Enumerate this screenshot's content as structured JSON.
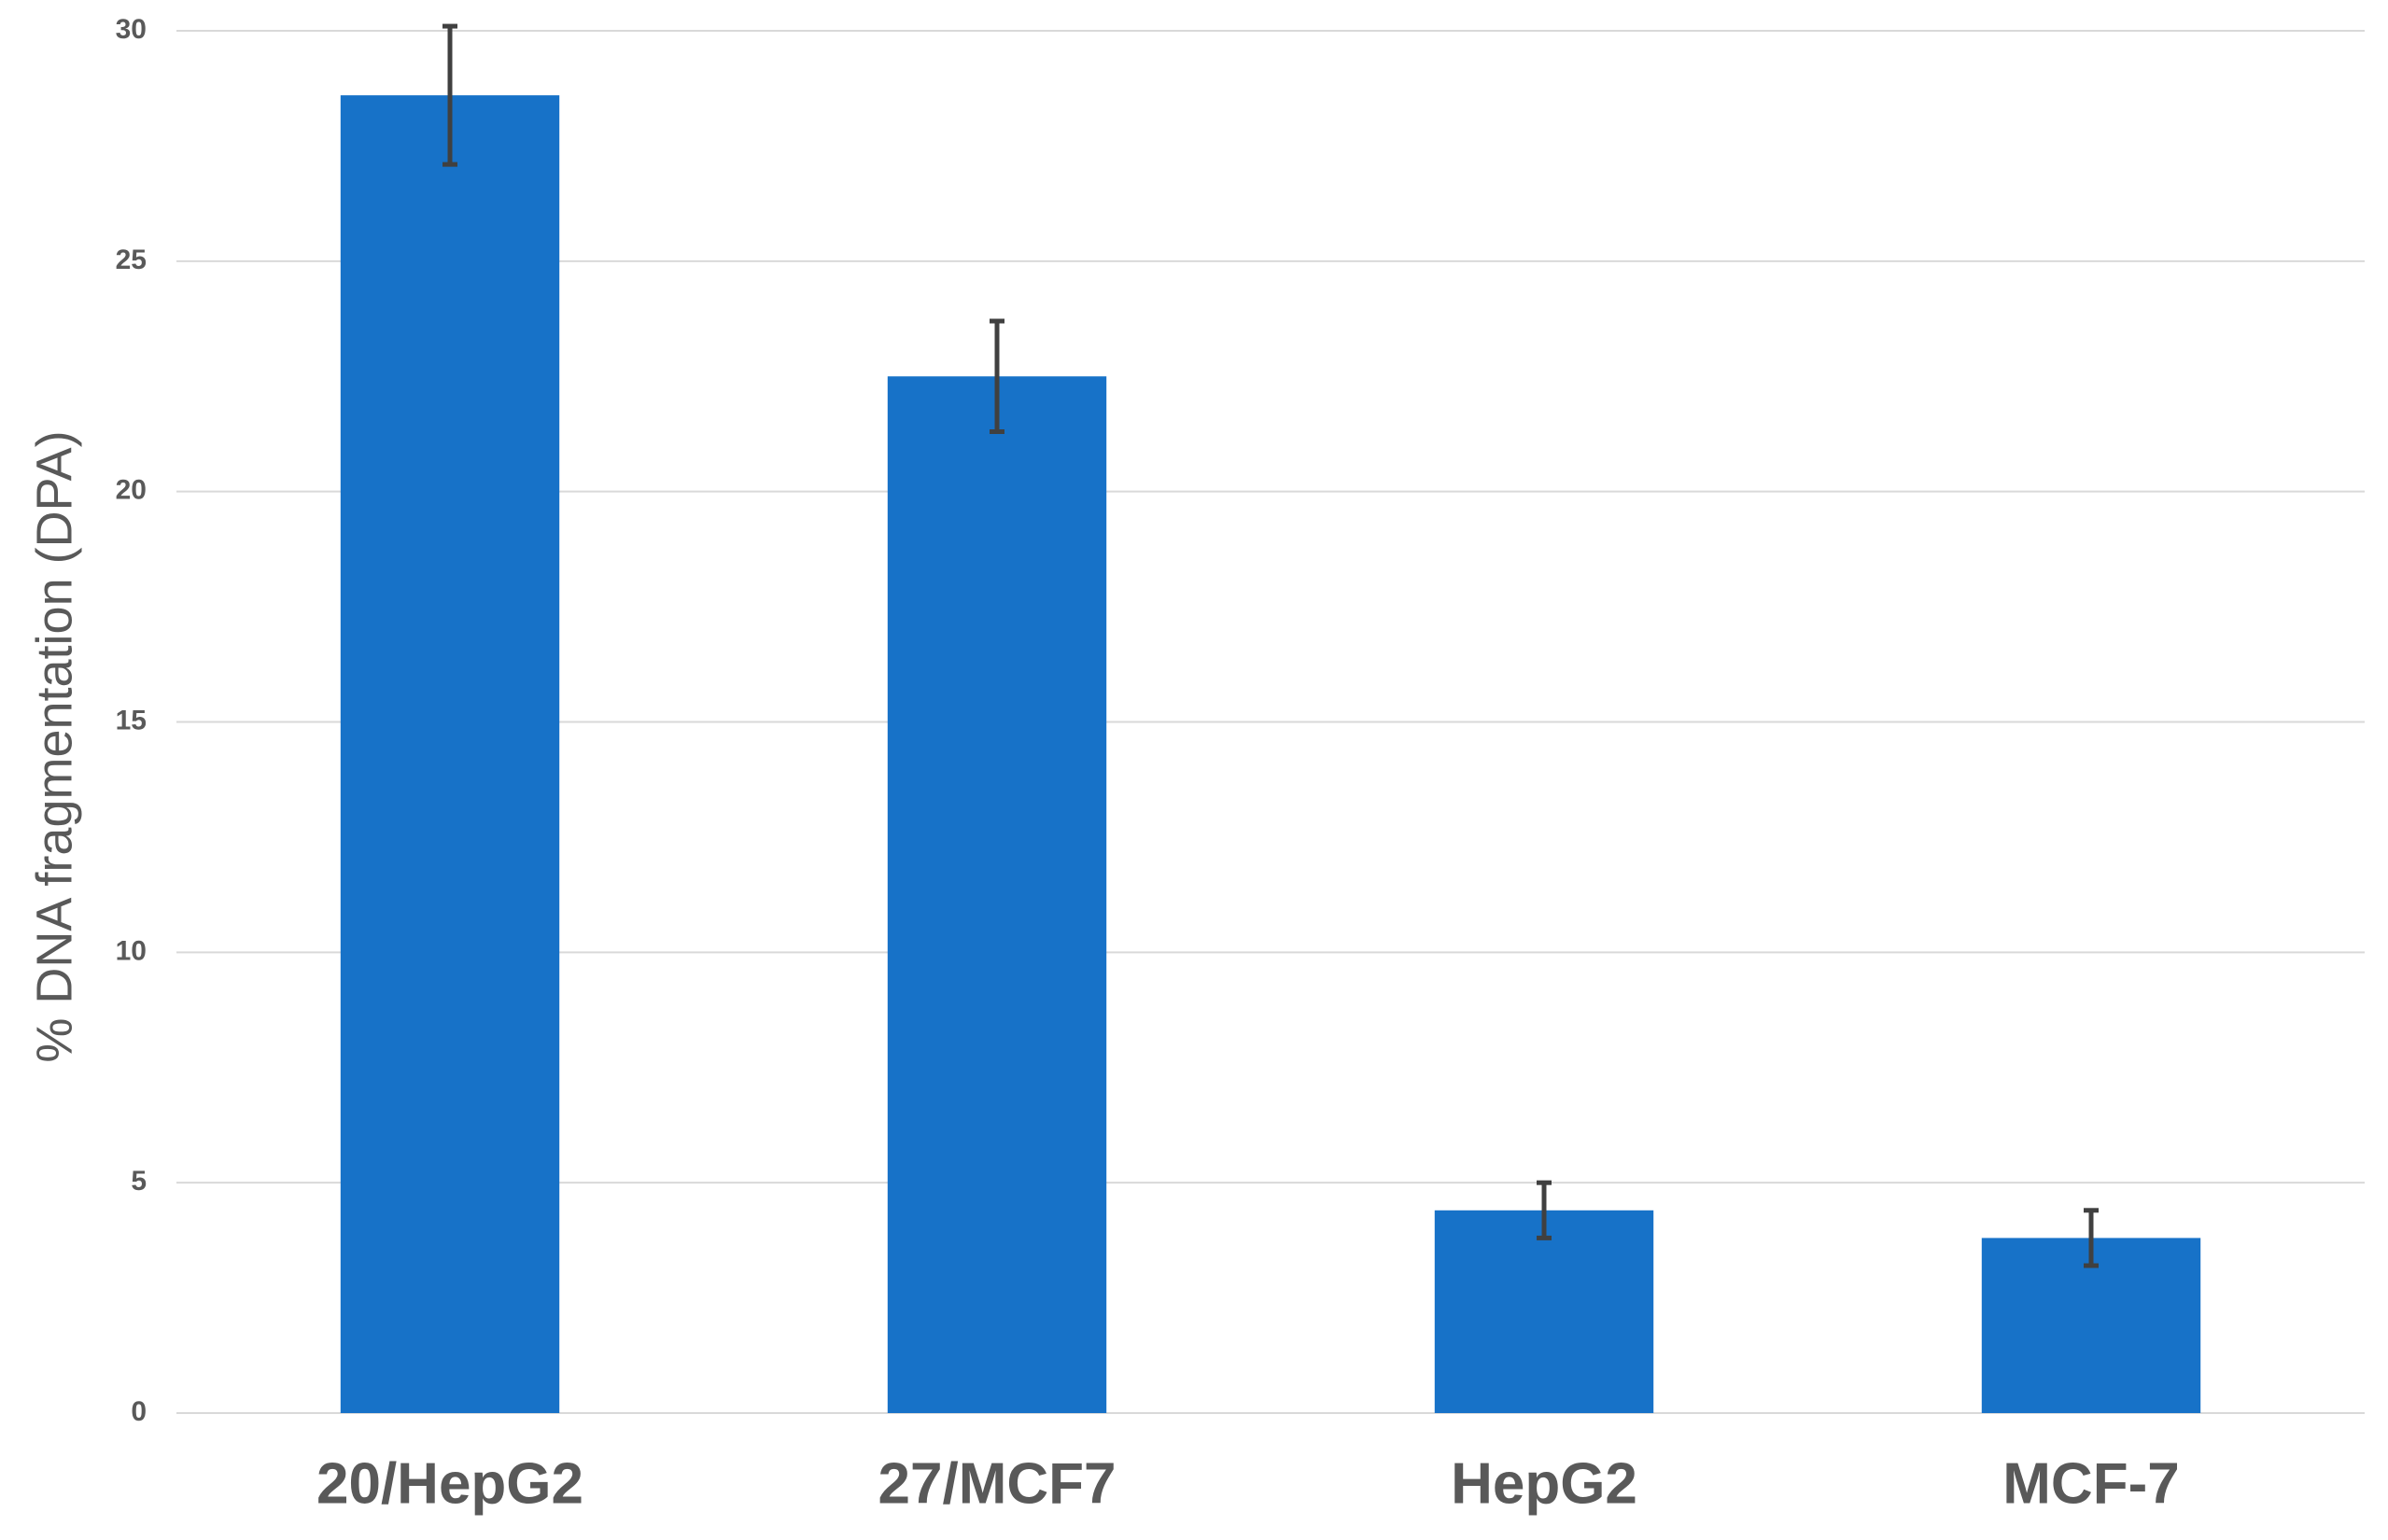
{
  "chart_data": {
    "type": "bar",
    "y_label": "% DNA fragmentation (DPA)",
    "categories": [
      "20/HepG2",
      "27/MCF7",
      "HepG2",
      "MCF-7"
    ],
    "values": [
      28.6,
      22.5,
      4.4,
      3.8
    ],
    "errors": [
      1.5,
      1.2,
      0.6,
      0.6
    ],
    "color": "#1772c8",
    "error_color": "#404040",
    "ylim": [
      0,
      30
    ],
    "yticks": [
      0,
      5,
      10,
      15,
      20,
      25,
      30
    ],
    "grid": true
  }
}
